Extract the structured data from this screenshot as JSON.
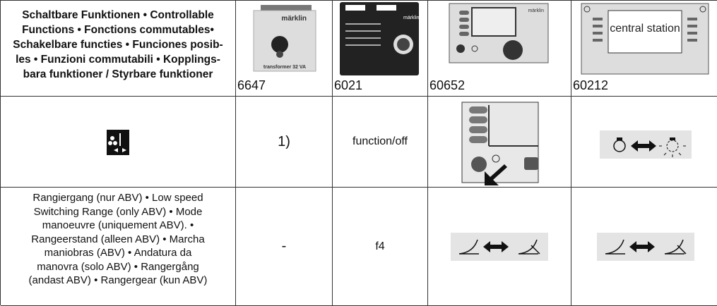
{
  "header": {
    "title_lines": [
      "Schaltbare Funktionen • Controllable",
      "Functions • Fonctions commutables•",
      "Schakelbare functies • Funciones posib-",
      "les • Funzioni commutabili • Kopplings-",
      "bara funktioner / Styrbare funktioner"
    ],
    "devices": [
      {
        "label": "6647",
        "brand": "märklin",
        "caption": "transformer 32 VA"
      },
      {
        "label": "6021",
        "brand": "märklin"
      },
      {
        "label": "60652",
        "brand": "märklin"
      },
      {
        "label": "60212",
        "caption": "central station"
      }
    ]
  },
  "rows": [
    {
      "cells": [
        "1)",
        "function/off"
      ]
    },
    {
      "title_lines": [
        "Rangiergang (nur ABV) • Low speed",
        "Switching Range (only ABV) • Mode",
        "manoeuvre (uniquement ABV). •",
        "Rangeerstand (alleen ABV) • Marcha",
        "maniobras (ABV) • Andatura da",
        "manovra (solo ABV) • Rangergång",
        "(andast ABV) • Rangergear (kun ABV)"
      ],
      "cells": [
        "-",
        "f4"
      ]
    }
  ]
}
